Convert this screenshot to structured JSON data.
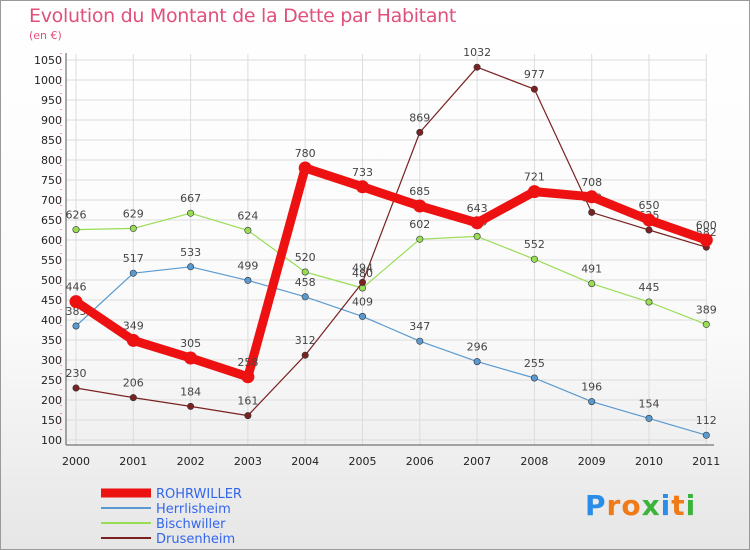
{
  "title": "Evolution du Montant de la Dette par Habitant",
  "subtitle": "(en €)",
  "logo": {
    "letters": [
      "P",
      "r",
      "o",
      "x",
      "i",
      "t",
      "i"
    ],
    "colors": [
      "#2a8ee8",
      "#f07a18",
      "#f07a18",
      "#3cb43c",
      "#2a8ee8",
      "#f07a18",
      "#3cb43c"
    ]
  },
  "chart_data": {
    "type": "line",
    "x": [
      "2000",
      "2001",
      "2002",
      "2003",
      "2004",
      "2005",
      "2006",
      "2007",
      "2008",
      "2009",
      "2010",
      "2011"
    ],
    "ylim": [
      100,
      1050
    ],
    "yticks": [
      100,
      150,
      200,
      250,
      300,
      350,
      400,
      450,
      500,
      550,
      600,
      650,
      700,
      750,
      800,
      850,
      900,
      950,
      1000,
      1050
    ],
    "grid": true,
    "legend_position": "bottom-left",
    "series": [
      {
        "name": "ROHRWILLER",
        "color": "#ee1111",
        "values": [
          446,
          349,
          305,
          258,
          780,
          733,
          685,
          643,
          721,
          708,
          650,
          600
        ]
      },
      {
        "name": "Herrlisheim",
        "color": "#5a9ad0",
        "values": [
          385,
          517,
          533,
          499,
          458,
          409,
          347,
          296,
          255,
          196,
          154,
          112
        ]
      },
      {
        "name": "Bischwiller",
        "color": "#99dd55",
        "values": [
          626,
          629,
          667,
          624,
          520,
          480,
          602,
          609,
          552,
          491,
          445,
          389
        ]
      },
      {
        "name": "Drusenheim",
        "color": "#7a2222",
        "values": [
          230,
          206,
          184,
          161,
          312,
          494,
          869,
          1032,
          977,
          669,
          625,
          582
        ]
      }
    ]
  }
}
